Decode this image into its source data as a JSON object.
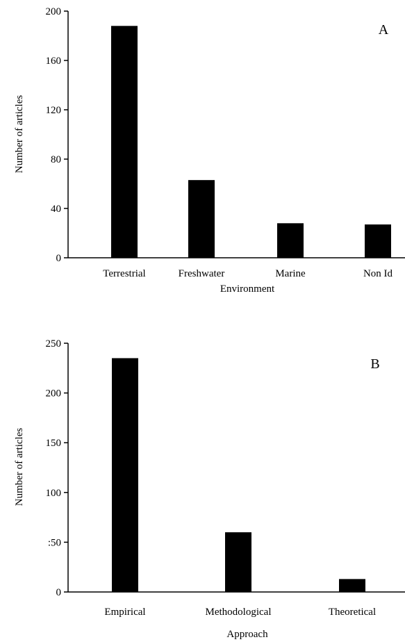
{
  "chart_data": [
    {
      "type": "bar",
      "panel_label": "A",
      "categories": [
        "Terrestrial",
        "Freshwater",
        "Marine",
        "Non Id"
      ],
      "values": [
        188,
        63,
        28,
        27
      ],
      "xlabel": "Environment",
      "ylabel": "Number of articles",
      "ylim": [
        0,
        200
      ],
      "yticks": [
        "0",
        "40",
        "80",
        "120",
        "160",
        "200"
      ],
      "bar_color": "#000000",
      "grid": false,
      "legend": "none"
    },
    {
      "type": "bar",
      "panel_label": "B",
      "categories": [
        "Empirical",
        "Methodological",
        "Theoretical"
      ],
      "values": [
        235,
        60,
        13
      ],
      "xlabel": "Approach",
      "ylabel": "Number of articles",
      "ylim": [
        0,
        250
      ],
      "yticks": [
        "0",
        ":50",
        "100",
        "150",
        "200",
        "250"
      ],
      "bar_color": "#000000",
      "grid": false,
      "legend": "none"
    }
  ]
}
